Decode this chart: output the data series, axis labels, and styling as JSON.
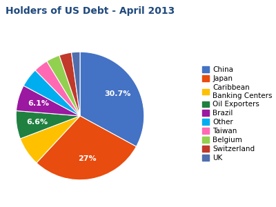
{
  "title": "Holders of US Debt - April 2013",
  "legend_labels": [
    "China",
    "Japan",
    "Caribbean\nBanking Centers",
    "Oil Exporters",
    "Brazil",
    "Other",
    "Taiwan",
    "Belgium",
    "Switzerland",
    "UK"
  ],
  "values": [
    30.7,
    27.0,
    6.8,
    6.6,
    6.1,
    4.5,
    3.4,
    3.2,
    2.9,
    2.0
  ],
  "colors": [
    "#4472C4",
    "#E84C0E",
    "#FFC000",
    "#208040",
    "#9B18A0",
    "#00AEEF",
    "#FF69B4",
    "#92D050",
    "#C0392B",
    "#4F6EAD"
  ],
  "pct_labels": [
    "30.7%",
    "27%",
    "",
    "6.6%",
    "6.1%",
    "",
    "",
    "",
    "",
    ""
  ],
  "title_fontsize": 10,
  "legend_fontsize": 7.5,
  "background_color": "#ffffff",
  "startangle": 90,
  "pct_distance": 0.68
}
